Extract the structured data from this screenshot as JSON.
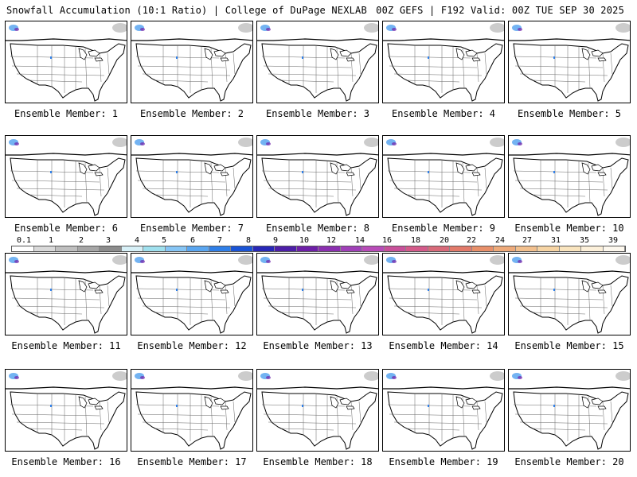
{
  "header": {
    "left": "Snowfall Accumulation (10:1 Ratio) | College of DuPage NEXLAB",
    "right": "00Z GEFS | F192 Valid: 00Z TUE SEP 30 2025"
  },
  "colorbar": {
    "labels": [
      "0.1",
      "1",
      "2",
      "3",
      "4",
      "5",
      "6",
      "7",
      "8",
      "9",
      "10",
      "12",
      "14",
      "16",
      "18",
      "20",
      "22",
      "24",
      "27",
      "31",
      "35",
      "39"
    ],
    "colors": [
      "#ffffff",
      "#d9d9d9",
      "#bfbfbf",
      "#a6a6a6",
      "#8c8c8c",
      "#d7f0f7",
      "#9fe0ee",
      "#86c5f5",
      "#5aa6f0",
      "#2f7fe8",
      "#1a54d6",
      "#2828b8",
      "#4d1fa8",
      "#6e1fa8",
      "#8b2fb0",
      "#a040b8",
      "#b84cb8",
      "#c8509a",
      "#d45a8a",
      "#d86a7a",
      "#e27a6a",
      "#e8906a",
      "#eeaa7a",
      "#f2c08e",
      "#f6d4a4",
      "#f9e4be",
      "#fcf0da",
      "#fdf8ee"
    ]
  },
  "members": [
    {
      "label": "Ensemble Member: 1"
    },
    {
      "label": "Ensemble Member: 2"
    },
    {
      "label": "Ensemble Member: 3"
    },
    {
      "label": "Ensemble Member: 4"
    },
    {
      "label": "Ensemble Member: 5"
    },
    {
      "label": "Ensemble Member: 6"
    },
    {
      "label": "Ensemble Member: 7"
    },
    {
      "label": "Ensemble Member: 8"
    },
    {
      "label": "Ensemble Member: 9"
    },
    {
      "label": "Ensemble Member: 10"
    },
    {
      "label": "Ensemble Member: 11"
    },
    {
      "label": "Ensemble Member: 12"
    },
    {
      "label": "Ensemble Member: 13"
    },
    {
      "label": "Ensemble Member: 14"
    },
    {
      "label": "Ensemble Member: 15"
    },
    {
      "label": "Ensemble Member: 16"
    },
    {
      "label": "Ensemble Member: 17"
    },
    {
      "label": "Ensemble Member: 18"
    },
    {
      "label": "Ensemble Member: 19"
    },
    {
      "label": "Ensemble Member: 20"
    }
  ]
}
